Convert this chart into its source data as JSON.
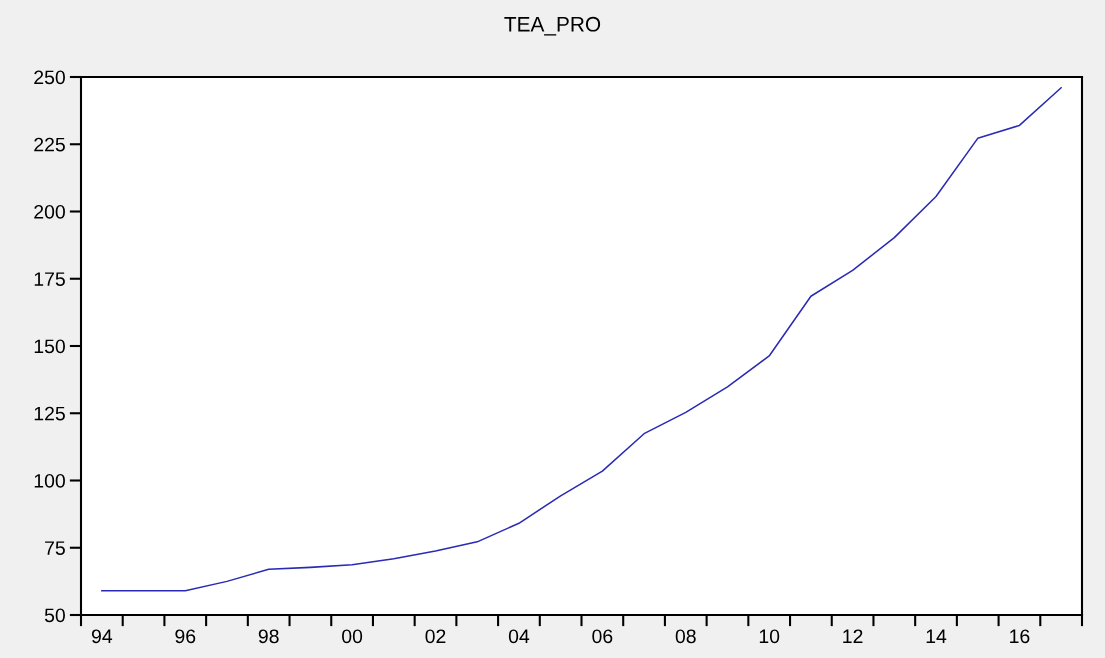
{
  "chart_data": {
    "type": "line",
    "title": "TEA_PRO",
    "categories": [
      "94",
      null,
      "96",
      null,
      "98",
      null,
      "00",
      null,
      "02",
      null,
      "04",
      null,
      "06",
      null,
      "08",
      null,
      "10",
      null,
      "12",
      null,
      "14",
      null,
      "16",
      null
    ],
    "series": [
      {
        "color": "#2a2ab4",
        "values": [
          59,
          59,
          59,
          62.5,
          67,
          67.7,
          68.7,
          70.9,
          73.8,
          77.2,
          84.1,
          94.3,
          103.5,
          117.4,
          125.3,
          134.8,
          146.3,
          168.5,
          178.1,
          190.3,
          205.6,
          227.2,
          232,
          246
        ]
      }
    ],
    "ylim": [
      50,
      250
    ],
    "yticks": [
      50,
      75,
      100,
      125,
      150,
      175,
      200,
      225,
      250
    ],
    "marker": "none",
    "line_style": "solid"
  }
}
